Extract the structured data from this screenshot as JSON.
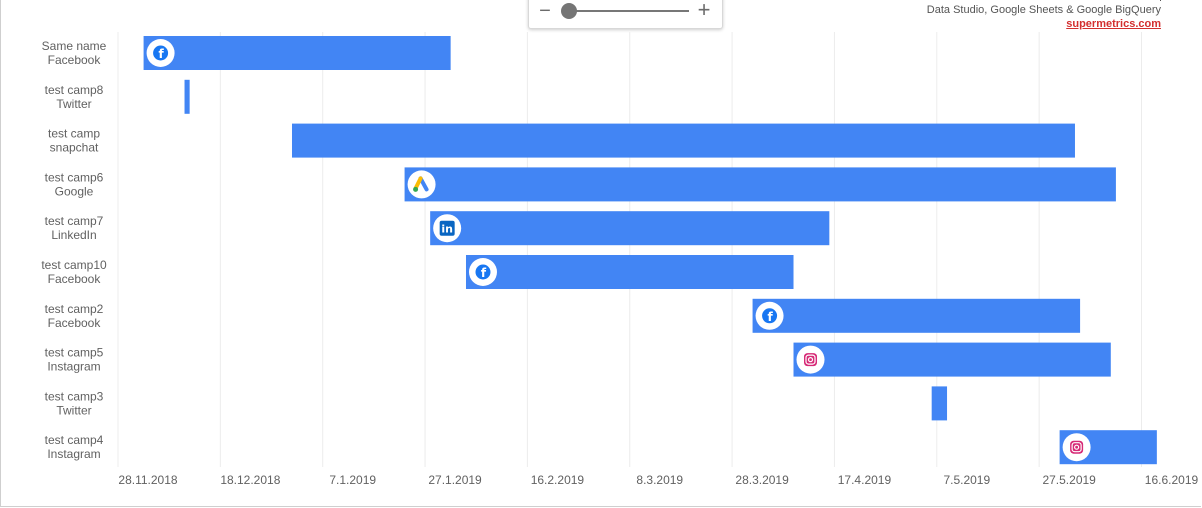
{
  "credit": {
    "line1": "Data Studio, Google Sheets & Google BigQuery",
    "link": "supermetrics.com"
  },
  "zoom": {
    "minus": "−",
    "plus": "+"
  },
  "colors": {
    "bar": "#4285f4",
    "grid": "#ececec",
    "text": "#616161"
  },
  "chart_data": {
    "type": "gantt",
    "x_ticks": [
      "28.11.2018",
      "18.12.2018",
      "7.1.2019",
      "27.1.2019",
      "16.2.2019",
      "8.3.2019",
      "28.3.2019",
      "17.4.2019",
      "7.5.2019",
      "27.5.2019",
      "16.6.2019"
    ],
    "x_range": [
      "2018-11-28",
      "2019-06-16"
    ],
    "rows": [
      {
        "name": "Same name",
        "channel": "Facebook",
        "start": "2018-12-03",
        "end": "2019-02-01",
        "icon": "facebook-icon"
      },
      {
        "name": "test camp8",
        "channel": "Twitter",
        "start": "2018-12-11",
        "end": "2018-12-12",
        "icon": ""
      },
      {
        "name": "test camp",
        "channel": "snapchat",
        "start": "2019-01-01",
        "end": "2019-06-03",
        "icon": ""
      },
      {
        "name": "test camp6",
        "channel": "Google",
        "start": "2019-01-23",
        "end": "2019-06-11",
        "icon": "google-ads-icon"
      },
      {
        "name": "test camp7",
        "channel": "LinkedIn",
        "start": "2019-01-28",
        "end": "2019-04-16",
        "icon": "linkedin-icon"
      },
      {
        "name": "test camp10",
        "channel": "Facebook",
        "start": "2019-02-04",
        "end": "2019-04-09",
        "icon": "facebook-icon"
      },
      {
        "name": "test camp2",
        "channel": "Facebook",
        "start": "2019-04-01",
        "end": "2019-06-04",
        "icon": "facebook-icon"
      },
      {
        "name": "test camp5",
        "channel": "Instagram",
        "start": "2019-04-09",
        "end": "2019-06-10",
        "icon": "instagram-icon"
      },
      {
        "name": "test camp3",
        "channel": "Twitter",
        "start": "2019-05-06",
        "end": "2019-05-09",
        "icon": ""
      },
      {
        "name": "test camp4",
        "channel": "Instagram",
        "start": "2019-05-31",
        "end": "2019-06-19",
        "icon": "instagram-icon"
      }
    ]
  }
}
